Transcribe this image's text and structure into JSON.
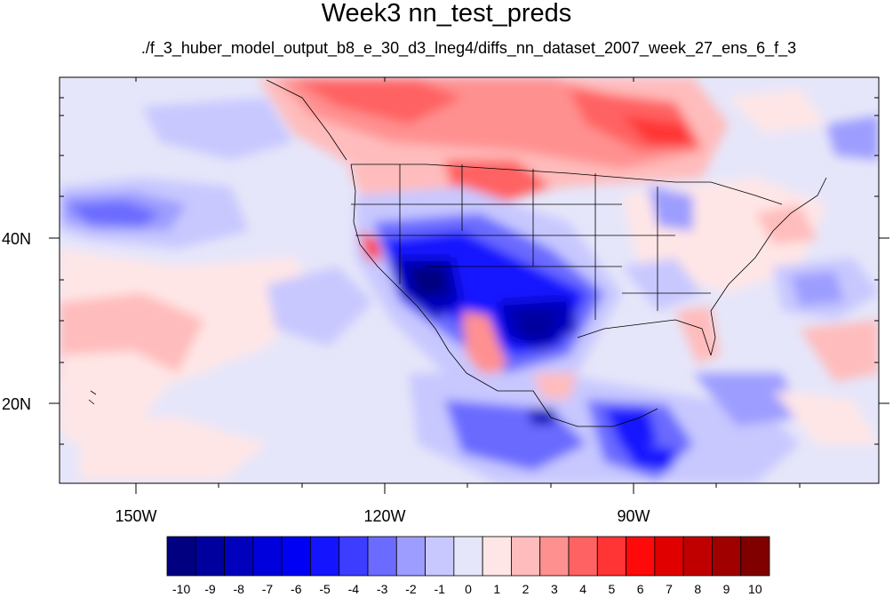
{
  "title": "Week3 nn_test_preds",
  "subtitle": "./f_3_huber_model_output_b8_e_30_d3_lneg4/diffs_nn_dataset_2007_week_27_ens_6_f_3",
  "lat_labels": [
    "40N",
    "20N"
  ],
  "lon_labels": [
    "150W",
    "120W",
    "90W"
  ],
  "colorbar": {
    "labels": [
      "-10",
      "-9",
      "-8",
      "-7",
      "-6",
      "-5",
      "-4",
      "-3",
      "-2",
      "-1",
      "0",
      "1",
      "2",
      "3",
      "4",
      "5",
      "6",
      "7",
      "8",
      "9",
      "10"
    ],
    "colors": [
      "#000080",
      "#00009e",
      "#0000bd",
      "#0000dc",
      "#0000f5",
      "#1414ff",
      "#3d3dff",
      "#6b6bff",
      "#9d9dff",
      "#c8c8ff",
      "#e6e6fa",
      "#ffe6e6",
      "#ffbcbc",
      "#ff9090",
      "#ff6262",
      "#ff3434",
      "#ff0a0a",
      "#e00000",
      "#c00000",
      "#a00000",
      "#800000"
    ]
  },
  "colors": {
    "background": "#e6e6fa",
    "coast": "#000000"
  }
}
